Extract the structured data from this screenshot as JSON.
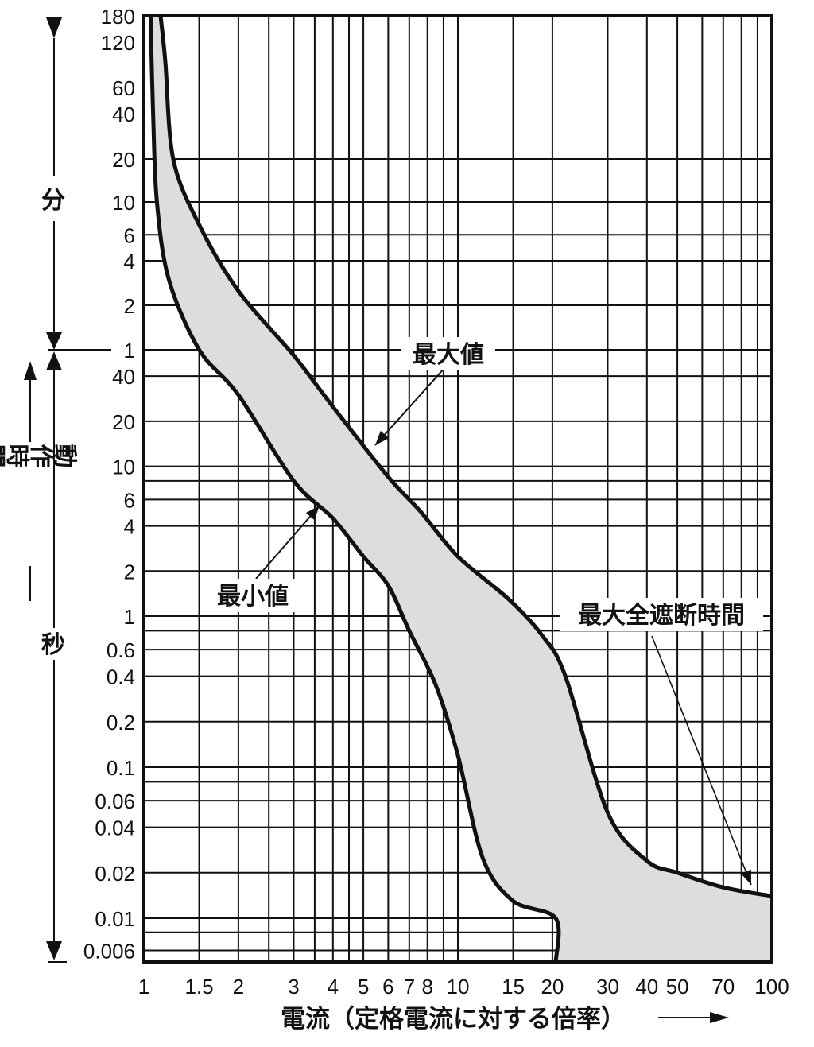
{
  "chart_data": {
    "type": "area",
    "x_scale": "log",
    "y_scale": "log",
    "xlim": [
      1,
      100
    ],
    "x_ticks": [
      {
        "label": "1",
        "value": 1
      },
      {
        "label": "1.5",
        "value": 1.5
      },
      {
        "label": "2",
        "value": 2
      },
      {
        "label": "3",
        "value": 3
      },
      {
        "label": "4",
        "value": 4
      },
      {
        "label": "5",
        "value": 5
      },
      {
        "label": "6",
        "value": 6
      },
      {
        "label": "7",
        "value": 7
      },
      {
        "label": "8",
        "value": 8
      },
      {
        "label": "10",
        "value": 10
      },
      {
        "label": "15",
        "value": 15
      },
      {
        "label": "20",
        "value": 20
      },
      {
        "label": "30",
        "value": 30
      },
      {
        "label": "40",
        "value": 40
      },
      {
        "label": "50",
        "value": 50
      },
      {
        "label": "70",
        "value": 70
      },
      {
        "label": "100",
        "value": 100
      }
    ],
    "xlabel": "電流（定格電流に対する倍率）",
    "time_units": {
      "minutes": "分",
      "seconds": "秒"
    },
    "ylabel": "動作時間",
    "y_ticks_minutes": [
      "180",
      "120",
      "60",
      "40",
      "20",
      "10",
      "6",
      "4",
      "2",
      "1"
    ],
    "y_ticks_seconds": [
      "40",
      "20",
      "10",
      "6",
      "4",
      "2",
      "1",
      "0.6",
      "0.4",
      "0.2",
      "0.1",
      "0.06",
      "0.04",
      "0.02",
      "0.01",
      "0.006"
    ],
    "ylim_seconds": [
      0.005,
      10800
    ],
    "grid": true,
    "series": [
      {
        "name": "最大値",
        "x": [
          1.13,
          1.17,
          1.24,
          1.5,
          2,
          3,
          4,
          6,
          7.6,
          10,
          14.5,
          18.5,
          22,
          30,
          40,
          50,
          70,
          100
        ],
        "y_seconds": [
          10800,
          5400,
          1200,
          420,
          150,
          55,
          25,
          8.5,
          5,
          2.5,
          1.3,
          0.75,
          0.4,
          0.05,
          0.024,
          0.02,
          0.016,
          0.014
        ]
      },
      {
        "name": "最小値",
        "x": [
          1.05,
          1.07,
          1.1,
          1.2,
          1.5,
          2,
          3,
          4,
          5,
          6,
          7,
          8.5,
          10,
          12,
          15,
          20.5,
          20.5
        ],
        "y_seconds": [
          10800,
          2400,
          600,
          180,
          60,
          30,
          8,
          4.5,
          2.5,
          1.6,
          0.8,
          0.35,
          0.12,
          0.025,
          0.013,
          0.01,
          0.005
        ]
      }
    ],
    "annotations": [
      "最大値",
      "最小値",
      "最大全遮断時間"
    ]
  }
}
